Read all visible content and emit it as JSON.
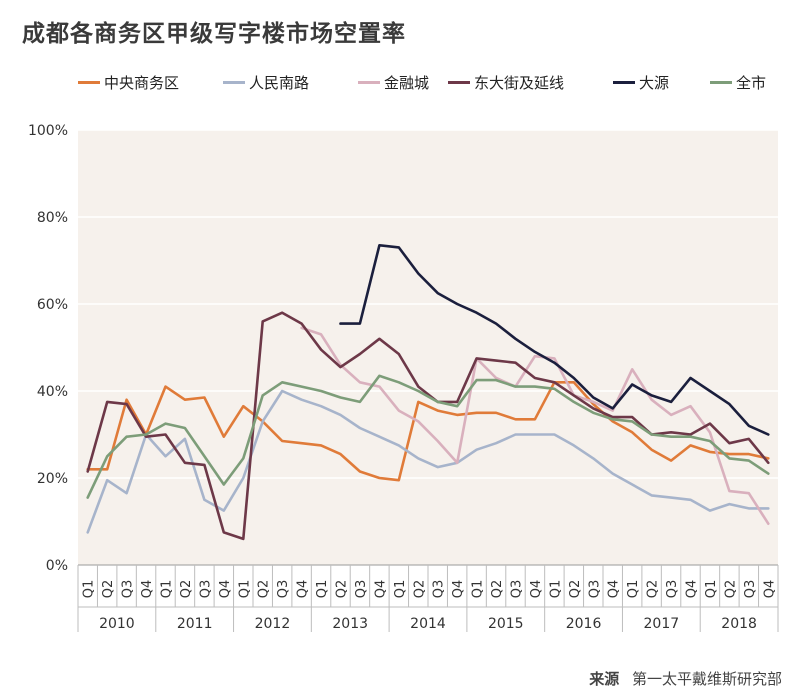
{
  "title": "成都各商务区甲级写字楼市场空置率",
  "source_label": "来源",
  "source_text": "第一太平戴维斯研究部",
  "chart_data": {
    "type": "line",
    "title": "成都各商务区甲级写字楼市场空置率",
    "ylim": [
      0,
      100
    ],
    "yticks": [
      "0%",
      "20%",
      "40%",
      "60%",
      "80%",
      "100%"
    ],
    "ytick_values": [
      0,
      20,
      40,
      60,
      80,
      100
    ],
    "quarters": [
      "Q1",
      "Q2",
      "Q3",
      "Q4",
      "Q1",
      "Q2",
      "Q3",
      "Q4",
      "Q1",
      "Q2",
      "Q3",
      "Q4",
      "Q1",
      "Q2",
      "Q3",
      "Q4",
      "Q1",
      "Q2",
      "Q3",
      "Q4",
      "Q1",
      "Q2",
      "Q3",
      "Q4",
      "Q1",
      "Q2",
      "Q3",
      "Q4",
      "Q1",
      "Q2",
      "Q3",
      "Q4",
      "Q1",
      "Q2",
      "Q3",
      "Q4"
    ],
    "years": [
      "2010",
      "2011",
      "2012",
      "2013",
      "2014",
      "2015",
      "2016",
      "2017",
      "2018"
    ],
    "legend_position": "top",
    "series": [
      {
        "name": "中央商务区",
        "color": "#e07b39",
        "values": [
          22,
          22,
          38,
          30,
          41,
          38,
          38.5,
          29.5,
          36.5,
          33,
          28.5,
          28,
          27.5,
          25.5,
          21.5,
          20,
          19.5,
          37.5,
          35.5,
          34.5,
          35,
          35,
          33.5,
          33.5,
          42,
          42,
          37,
          33,
          30.5,
          26.5,
          24,
          27.5,
          26,
          25.5,
          25.5,
          24.5
        ]
      },
      {
        "name": "人民南路",
        "color": "#a7b4cb",
        "values": [
          7.5,
          19.5,
          16.5,
          30,
          25,
          29,
          15,
          12.5,
          20,
          33,
          40,
          38,
          36.5,
          34.5,
          31.5,
          29.5,
          27.5,
          24.5,
          22.5,
          23.5,
          26.5,
          28,
          30,
          30,
          30,
          27.5,
          24.5,
          21,
          18.5,
          16,
          15.5,
          15,
          12.5,
          14,
          13,
          13
        ]
      },
      {
        "name": "金融城",
        "color": "#d9b0bd",
        "values": [
          null,
          null,
          null,
          null,
          null,
          null,
          null,
          null,
          null,
          null,
          null,
          54.5,
          53,
          46,
          42,
          41,
          35.5,
          33,
          28.5,
          23.5,
          47.5,
          43,
          41,
          48,
          47.5,
          39,
          37.5,
          35.5,
          45,
          38,
          34.5,
          36.5,
          30.5,
          17,
          16.5,
          9.5
        ]
      },
      {
        "name": "东大街及延线",
        "color": "#6d3848",
        "values": [
          21.5,
          37.5,
          37,
          29.5,
          30,
          23.5,
          23,
          7.5,
          6,
          56,
          58,
          55.5,
          49.5,
          45.5,
          48.5,
          52,
          48.5,
          41,
          37.5,
          37.5,
          47.5,
          47,
          46.5,
          43,
          42,
          39,
          36,
          34,
          34,
          30,
          30.5,
          30,
          32.5,
          28,
          29,
          23.5
        ]
      },
      {
        "name": "大源",
        "color": "#1b1f3d",
        "values": [
          null,
          null,
          null,
          null,
          null,
          null,
          null,
          null,
          null,
          null,
          null,
          null,
          null,
          55.5,
          55.5,
          73.5,
          73,
          67,
          62.5,
          60,
          58,
          55.5,
          52,
          49,
          46.5,
          43,
          38.5,
          36,
          41.5,
          39,
          37.5,
          43,
          40,
          37,
          32,
          30
        ]
      },
      {
        "name": "全市",
        "color": "#7d9d79",
        "values": [
          15.5,
          25,
          29.5,
          30,
          32.5,
          31.5,
          25,
          18.5,
          24.5,
          39,
          42,
          41,
          40,
          38.5,
          37.5,
          43.5,
          42,
          40,
          37.5,
          36.5,
          42.5,
          42.5,
          41,
          41,
          40.5,
          37.5,
          35,
          33.5,
          33,
          30,
          29.5,
          29.5,
          28.5,
          24.5,
          24,
          21
        ]
      }
    ]
  }
}
